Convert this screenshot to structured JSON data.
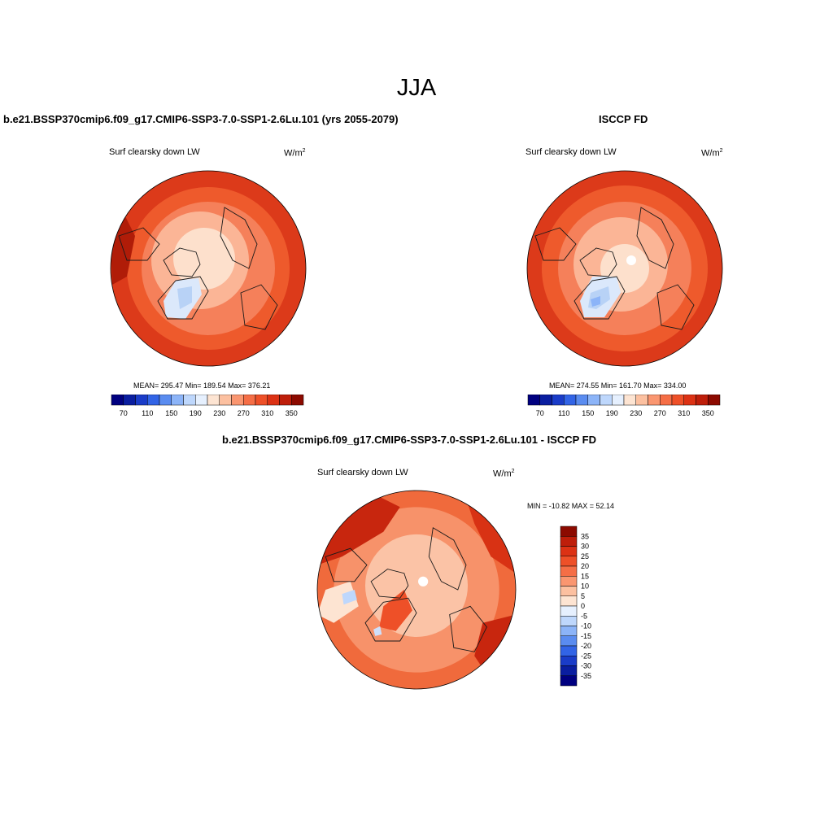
{
  "figure": {
    "title": "JJA"
  },
  "left_panel": {
    "title": "b.e21.BSSP370cmip6.f09_g17.CMIP6-SSP3-7.0-SSP1-2.6Lu.101 (yrs 2055-2079)",
    "variable": "Surf clearsky down LW",
    "units_base": "W/m",
    "units_exp": "2",
    "stats": "MEAN= 295.47  Min= 189.54  Max= 376.21"
  },
  "right_panel": {
    "title": "ISCCP FD",
    "variable": "Surf clearsky down LW",
    "units_base": "W/m",
    "units_exp": "2",
    "stats": "MEAN= 274.55  Min= 161.70  Max= 334.00"
  },
  "diff_panel": {
    "title": "b.e21.BSSP370cmip6.f09_g17.CMIP6-SSP3-7.0-SSP1-2.6Lu.101 - ISCCP FD",
    "variable": "Surf clearsky down LW",
    "units_base": "W/m",
    "units_exp": "2",
    "stats": "MIN = -10.82 MAX =  52.14"
  },
  "colorbar_abs": {
    "tick_labels": [
      "70",
      "110",
      "150",
      "190",
      "230",
      "270",
      "310",
      "350"
    ],
    "colors": [
      "#000080",
      "#0a1ea0",
      "#1a3cc8",
      "#3264e6",
      "#5a8cf0",
      "#8cb4f8",
      "#bed7fc",
      "#e6f0fe",
      "#fde4d2",
      "#fcc0a0",
      "#fa9670",
      "#f56e46",
      "#ee5028",
      "#dc3214",
      "#be1e0a",
      "#8c0a00"
    ]
  },
  "colorbar_diff": {
    "tick_labels": [
      "35",
      "30",
      "25",
      "20",
      "15",
      "10",
      "5",
      "0",
      "-5",
      "-10",
      "-15",
      "-20",
      "-25",
      "-30",
      "-35"
    ],
    "colors": [
      "#8c0a00",
      "#be1e0a",
      "#dc3214",
      "#ee5028",
      "#f56e46",
      "#fa9670",
      "#fcc0a0",
      "#fde4d2",
      "#e6f0fe",
      "#bed7fc",
      "#8cb4f8",
      "#5a8cf0",
      "#3264e6",
      "#1a3cc8",
      "#0a1ea0",
      "#000080"
    ]
  },
  "map_colors": {
    "outer": "#dc3a1a",
    "ring": "#ee5a2c",
    "mid": "#f5805a",
    "inner": "#fbb596",
    "pole": "#fde0cc",
    "greenland_a": "#dbe8fb",
    "greenland_b": "#b8d2f6",
    "dark": "#b01c08",
    "coast": "#1a1a1a"
  }
}
